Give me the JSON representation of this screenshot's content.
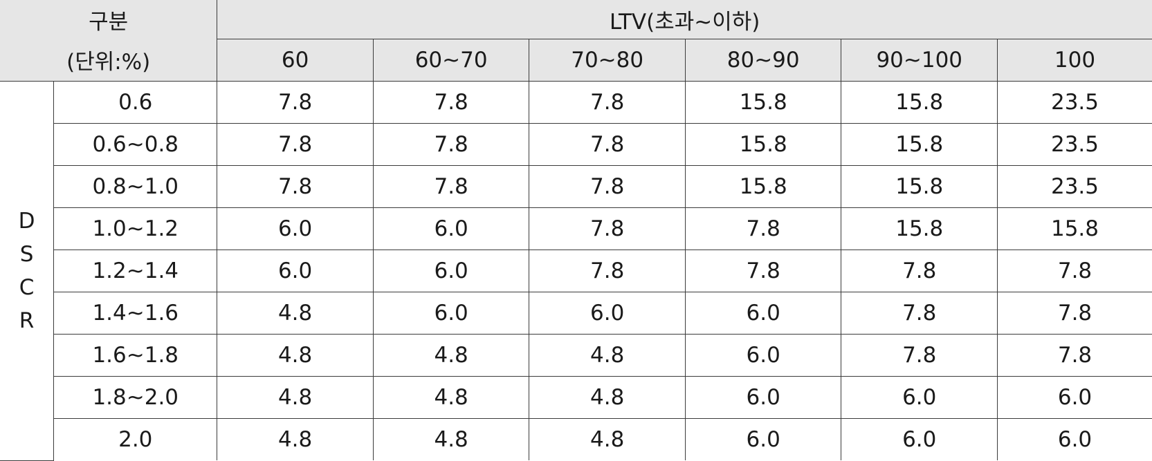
{
  "header": {
    "corner_line1": "구분",
    "corner_line2": "(단위:%)",
    "group_label": "LTV(초과~이하)",
    "columns": [
      "60",
      "60~70",
      "70~80",
      "80~90",
      "90~100",
      "100"
    ]
  },
  "side_label_letters": [
    "D",
    "S",
    "C",
    "R"
  ],
  "rows": [
    {
      "label": "0.6",
      "values": [
        "7.8",
        "7.8",
        "7.8",
        "15.8",
        "15.8",
        "23.5"
      ]
    },
    {
      "label": "0.6~0.8",
      "values": [
        "7.8",
        "7.8",
        "7.8",
        "15.8",
        "15.8",
        "23.5"
      ]
    },
    {
      "label": "0.8~1.0",
      "values": [
        "7.8",
        "7.8",
        "7.8",
        "15.8",
        "15.8",
        "23.5"
      ]
    },
    {
      "label": "1.0~1.2",
      "values": [
        "6.0",
        "6.0",
        "7.8",
        "7.8",
        "15.8",
        "15.8"
      ]
    },
    {
      "label": "1.2~1.4",
      "values": [
        "6.0",
        "6.0",
        "7.8",
        "7.8",
        "7.8",
        "7.8"
      ]
    },
    {
      "label": "1.4~1.6",
      "values": [
        "4.8",
        "6.0",
        "6.0",
        "6.0",
        "7.8",
        "7.8"
      ]
    },
    {
      "label": "1.6~1.8",
      "values": [
        "4.8",
        "4.8",
        "4.8",
        "6.0",
        "7.8",
        "7.8"
      ]
    },
    {
      "label": "1.8~2.0",
      "values": [
        "4.8",
        "4.8",
        "4.8",
        "6.0",
        "6.0",
        "6.0"
      ]
    },
    {
      "label": "2.0",
      "values": [
        "4.8",
        "4.8",
        "4.8",
        "6.0",
        "6.0",
        "6.0"
      ]
    }
  ],
  "colors": {
    "header_background": "#e6e6e6",
    "border": "#3a3a3a"
  }
}
